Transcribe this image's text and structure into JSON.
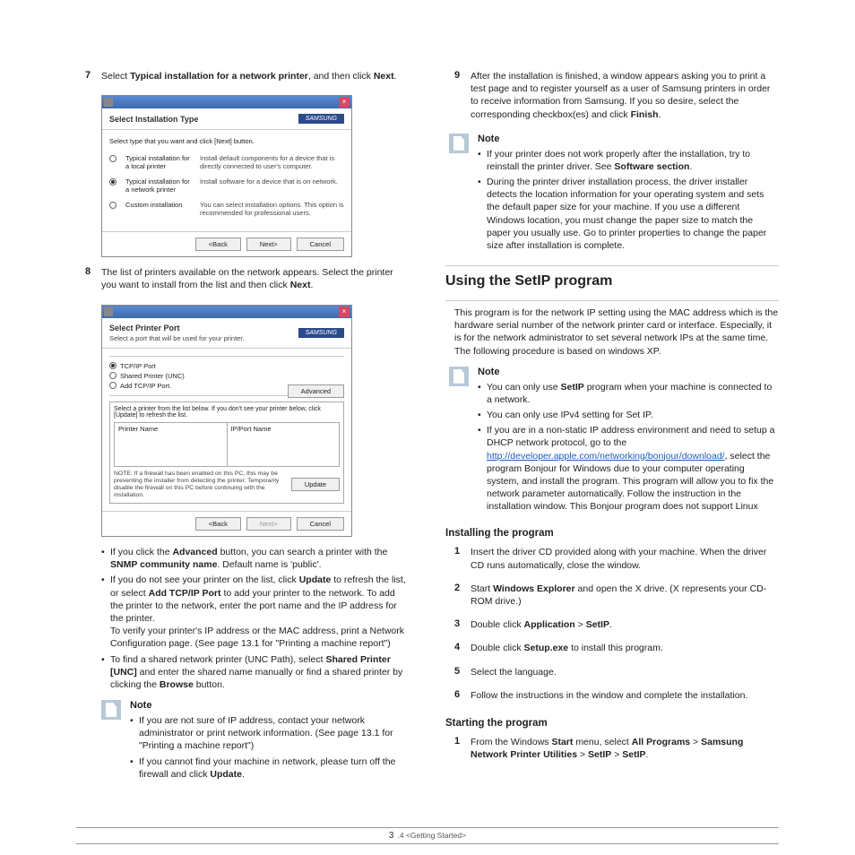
{
  "left": {
    "step7": {
      "num": "7",
      "pre": "Select",
      "bold": "Typical installation for a network printer",
      "post": ", and then click",
      "bold2": "Next",
      "end": "."
    },
    "dlg1": {
      "title": "Select Installation Type",
      "logo": "SAMSUNG",
      "instruction": "Select type that you want and click [Next] button.",
      "opts": [
        {
          "label": "Typical installation for a local printer",
          "desc": "Install default components for a device that is directly connected to user's computer.",
          "checked": false
        },
        {
          "label": "Typical installation for a network printer",
          "desc": "Install software for a device that is on network.",
          "checked": true
        },
        {
          "label": "Custom installation",
          "desc": "You can select installation options. This option is recommended for professional users.",
          "checked": false
        }
      ],
      "btns": {
        "back": "<Back",
        "next": "Next>",
        "cancel": "Cancel"
      }
    },
    "step8": {
      "num": "8",
      "text": "The list of printers available on the network appears. Select the printer you want to install from the list and then click",
      "bold": "Next",
      "end": "."
    },
    "dlg2": {
      "title": "Select Printer Port",
      "sub": "Select a port that will be used for your printer.",
      "logo": "SAMSUNG",
      "ports": [
        {
          "label": "TCP/IP Port",
          "checked": true
        },
        {
          "label": "Shared Printer (UNC)",
          "checked": false
        },
        {
          "label": "Add TCP/IP Port.",
          "checked": false
        }
      ],
      "advanced": "Advanced",
      "subinstr": "Select a printer from the list below. If you don't see your printer below, click [Update] to refresh the list.",
      "colA": "Printer Name",
      "colB": "IP/Port Name",
      "note": "NOTE: If a firewall has been enabled on this PC, this may be preventing the installer from detecting the printer. Temporarily disable the firewall on this PC before continuing with the installation.",
      "update": "Update",
      "btns": {
        "back": "<Back",
        "next": "Next>",
        "cancel": "Cancel"
      }
    },
    "b1": {
      "pre": "If you click the",
      "bold": "Advanced",
      "mid": "button, you can search a printer with the",
      "bold2": "SNMP community name",
      "post": ". Default name is 'public'."
    },
    "b2": {
      "pre": "If you do not see your printer on the list, click",
      "bold": "Update",
      "mid": "to refresh the list, or select",
      "bold2": "Add TCP/IP Port",
      "post": "to add your printer to the network. To add the printer to the network, enter the port name and the IP address for the printer.",
      "extra": "To verify your printer's IP address or the MAC address, print a Network Configuration page. (See  page 13.1 for \"Printing a machine report\")"
    },
    "b3": {
      "pre": "To find a shared network printer (UNC Path), select",
      "bold": "Shared Printer [UNC]",
      "mid": "and enter the shared name manually or find a shared printer by clicking the",
      "bold2": "Browse",
      "post": "button."
    },
    "note1": {
      "a": "If you are not sure of IP address, contact your network administrator or print network information. (See  page 13.1 for \"Printing a machine report\")",
      "b": "If you cannot find your machine in network, please turn off the firewall and click",
      "bold": "Update",
      "end": "."
    }
  },
  "right": {
    "step9": {
      "num": "9",
      "text": "After the installation is finished, a window appears asking you to print a test page and to register yourself as a user of Samsung printers in order to receive information from Samsung. If you so desire, select the corresponding checkbox(es) and click",
      "bold": "Finish",
      "end": "."
    },
    "note2": {
      "title": "Note",
      "a": {
        "pre": "If your printer does not work properly after the installation, try to reinstall the printer driver. See",
        "bold": "Software section",
        "end": "."
      },
      "b": "During the printer driver installation process, the driver installer detects the location information for your operating system and sets the default paper size for your machine. If you use a different Windows location, you must change the paper size to match the paper you usually use. Go to printer properties to change the paper size after installation is complete."
    },
    "sec": "Using the SetIP program",
    "secdesc": "This program is for the network IP setting using the MAC address which is the hardware serial number of the network printer card or interface. Especially, it is for the network administrator to set several network IPs at the same time. The following procedure is based on windows XP.",
    "note3": {
      "title": "Note",
      "a": {
        "pre": "You can only use",
        "bold": "SetIP",
        "post": "program when your machine is connected to a network."
      },
      "b": "You can only use IPv4 setting for Set IP.",
      "c": {
        "pre": "If you are in a non-static IP address environment and need to setup a DHCP network protocol, go to the",
        "link": "http://developer.apple.com/networking/bonjour/download/",
        "post": ", select the program Bonjour for Windows due to your computer operating system, and install the program. This program will allow you to fix the network parameter automatically. Follow the instruction in the installation window. This Bonjour program does not support Linux"
      }
    },
    "sub1": "Installing the program",
    "s1": {
      "num": "1",
      "text": "Insert the driver CD provided along with your machine. When the driver CD runs automatically, close the window."
    },
    "s2": {
      "num": "2",
      "pre": "Start",
      "bold": "Windows Explorer",
      "post": "and open the X drive. (X represents your CD-ROM drive.)"
    },
    "s3": {
      "num": "3",
      "pre": "Double click",
      "bold": "Application",
      "arrow": ">",
      "bold2": "SetIP",
      "end": "."
    },
    "s4": {
      "num": "4",
      "pre": "Double click",
      "bold": "Setup.exe",
      "post": "to install this program."
    },
    "s5": {
      "num": "5",
      "text": "Select the language."
    },
    "s6": {
      "num": "6",
      "text": "Follow the instructions in the window and complete the installation."
    },
    "sub2": "Starting the program",
    "s21": {
      "num": "1",
      "pre": "From the Windows",
      "bold": "Start",
      "mid": "menu, select",
      "bold2": "All Programs",
      "arrow": ">",
      "bold3": "Samsung Network Printer Utilities",
      "arrow2": ">",
      "bold4": "SetIP",
      "arrow3": ">",
      "bold5": "SetIP",
      "end": "."
    }
  },
  "footer": {
    "page": "3",
    "small": ".4",
    "label": "<Getting Started>"
  }
}
